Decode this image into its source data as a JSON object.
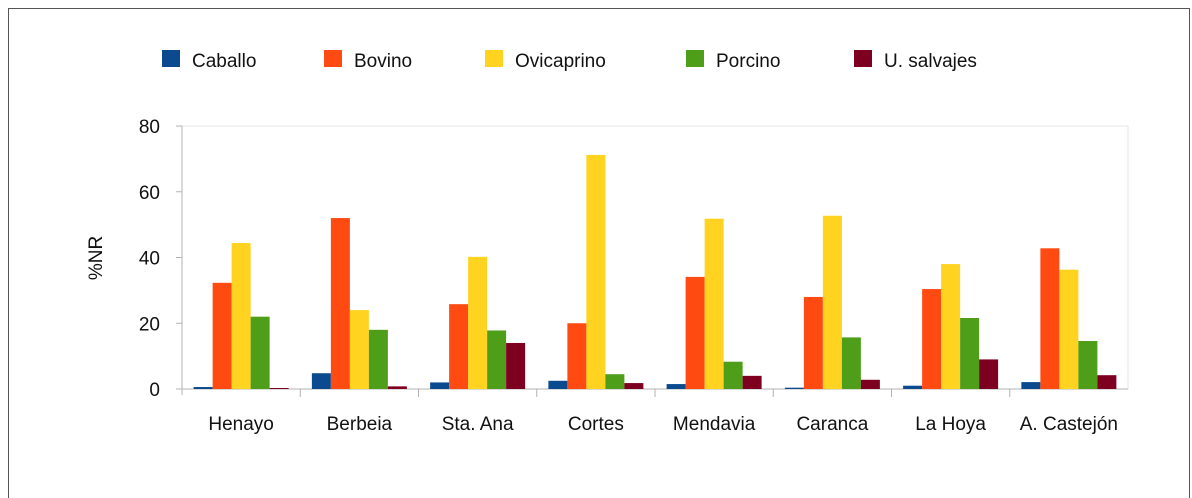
{
  "chart_data": {
    "type": "bar",
    "title": "",
    "xlabel": "",
    "ylabel": "%NR",
    "ylim": [
      0,
      80
    ],
    "yticks": [
      0,
      20,
      40,
      60,
      80
    ],
    "grid": false,
    "legend_position": "top",
    "categories": [
      "Henayo",
      "Berbeia",
      "Sta. Ana",
      "Cortes",
      "Mendavia",
      "Caranca",
      "La Hoya",
      "A. Castejón"
    ],
    "series": [
      {
        "name": "Caballo",
        "color": "#0b4a8f",
        "values": [
          0.6,
          4.8,
          2.0,
          2.5,
          1.5,
          0.4,
          1.0,
          2.1
        ]
      },
      {
        "name": "Bovino",
        "color": "#ff4a12",
        "values": [
          32.3,
          52.0,
          25.8,
          20.0,
          34.1,
          28.0,
          30.4,
          42.8
        ]
      },
      {
        "name": "Ovicaprino",
        "color": "#ffd320",
        "values": [
          44.4,
          24.0,
          40.2,
          71.2,
          51.8,
          52.7,
          38.0,
          36.3
        ]
      },
      {
        "name": "Porcino",
        "color": "#4f9e1a",
        "values": [
          22.0,
          18.0,
          17.8,
          4.5,
          8.3,
          15.7,
          21.6,
          14.6
        ]
      },
      {
        "name": "U. salvajes",
        "color": "#7e0021",
        "values": [
          0.3,
          0.8,
          14.0,
          1.8,
          4.0,
          2.8,
          9.0,
          4.2
        ]
      }
    ]
  }
}
